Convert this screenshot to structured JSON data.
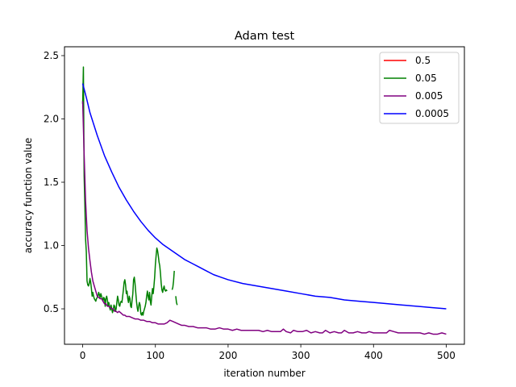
{
  "chart_data": {
    "type": "line",
    "title": "Adam test",
    "xlabel": "iteration number",
    "ylabel": "accuracy function value",
    "xlim": [
      -25,
      525
    ],
    "ylim": [
      0.22,
      2.57
    ],
    "xticks": [
      0,
      100,
      200,
      300,
      400,
      500
    ],
    "yticks": [
      0.5,
      1.0,
      1.5,
      2.0,
      2.5
    ],
    "xtick_labels": [
      "0",
      "100",
      "200",
      "300",
      "400",
      "500"
    ],
    "ytick_labels": [
      "0.5",
      "1.0",
      "1.5",
      "2.0",
      "2.5"
    ],
    "grid": false,
    "legend_position": "top-right",
    "series": [
      {
        "name": "0.5",
        "color": "#ff0000",
        "points": []
      },
      {
        "name": "0.05",
        "color": "#008000",
        "points": [
          [
            0,
            2.12
          ],
          [
            1,
            2.41
          ],
          [
            2,
            1.55
          ],
          [
            3,
            1.32
          ],
          [
            4,
            1.05
          ],
          [
            5,
            0.95
          ],
          [
            6,
            0.72
          ],
          [
            7,
            0.69
          ],
          [
            8,
            0.68
          ],
          [
            9,
            0.7
          ],
          [
            10,
            0.74
          ],
          [
            11,
            0.71
          ],
          [
            12,
            0.66
          ],
          [
            13,
            0.6
          ],
          [
            14,
            0.63
          ],
          [
            15,
            0.6
          ],
          [
            16,
            0.58
          ],
          [
            17,
            0.57
          ],
          [
            18,
            0.56
          ],
          [
            19,
            0.58
          ],
          [
            20,
            0.59
          ],
          [
            21,
            0.6
          ],
          [
            22,
            0.63
          ],
          [
            23,
            0.61
          ],
          [
            24,
            0.59
          ],
          [
            25,
            0.62
          ],
          [
            26,
            0.6
          ],
          [
            27,
            0.58
          ],
          [
            28,
            0.56
          ],
          [
            29,
            0.59
          ],
          [
            30,
            0.58
          ],
          [
            31,
            0.52
          ],
          [
            32,
            0.58
          ],
          [
            33,
            0.6
          ],
          [
            34,
            0.57
          ],
          [
            35,
            0.52
          ],
          [
            36,
            0.55
          ],
          [
            37,
            0.51
          ],
          [
            38,
            0.49
          ],
          [
            39,
            0.53
          ],
          [
            40,
            0.5
          ],
          [
            41,
            0.47
          ],
          [
            42,
            0.49
          ],
          [
            43,
            0.53
          ],
          [
            44,
            0.52
          ],
          [
            45,
            0.48
          ],
          [
            46,
            0.5
          ],
          [
            47,
            0.55
          ],
          [
            48,
            0.6
          ],
          [
            49,
            0.57
          ],
          [
            50,
            0.53
          ],
          [
            51,
            0.52
          ],
          [
            52,
            0.55
          ],
          [
            53,
            0.56
          ],
          [
            54,
            0.55
          ],
          [
            55,
            0.6
          ],
          [
            56,
            0.65
          ],
          [
            57,
            0.71
          ],
          [
            58,
            0.73
          ],
          [
            59,
            0.69
          ],
          [
            60,
            0.62
          ],
          [
            61,
            0.64
          ],
          [
            62,
            0.58
          ],
          [
            63,
            0.55
          ],
          [
            64,
            0.6
          ],
          [
            65,
            0.58
          ],
          [
            66,
            0.52
          ],
          [
            67,
            0.51
          ],
          [
            68,
            0.57
          ],
          [
            69,
            0.62
          ],
          [
            70,
            0.73
          ],
          [
            71,
            0.75
          ],
          [
            72,
            0.7
          ],
          [
            73,
            0.63
          ],
          [
            74,
            0.56
          ],
          [
            75,
            0.51
          ],
          [
            76,
            0.48
          ],
          [
            77,
            0.52
          ],
          [
            78,
            0.55
          ],
          [
            79,
            0.53
          ],
          [
            80,
            0.46
          ],
          [
            81,
            0.45
          ],
          [
            82,
            0.47
          ],
          [
            83,
            0.45
          ],
          [
            84,
            0.48
          ],
          [
            85,
            0.5
          ],
          [
            86,
            0.52
          ],
          [
            87,
            0.55
          ],
          [
            88,
            0.6
          ],
          [
            89,
            0.64
          ],
          [
            90,
            0.6
          ],
          [
            91,
            0.57
          ],
          [
            92,
            0.63
          ],
          [
            93,
            0.56
          ],
          [
            94,
            0.53
          ],
          [
            95,
            0.6
          ],
          [
            96,
            0.66
          ],
          [
            97,
            0.62
          ],
          [
            98,
            0.68
          ],
          [
            99,
            0.75
          ],
          [
            100,
            0.85
          ],
          [
            101,
            0.92
          ],
          [
            102,
            0.98
          ],
          [
            103,
            0.96
          ],
          [
            104,
            0.92
          ],
          [
            105,
            0.87
          ],
          [
            106,
            0.84
          ],
          [
            107,
            0.78
          ],
          [
            108,
            0.7
          ],
          [
            109,
            0.65
          ],
          [
            110,
            0.63
          ],
          [
            111,
            0.66
          ],
          [
            112,
            0.68
          ],
          [
            113,
            0.65
          ],
          [
            114,
            0.64
          ],
          [
            115,
            0.65
          ],
          [
            116,
            0.64
          ],
          [
            null,
            null
          ],
          [
            123,
            0.65
          ],
          [
            124,
            0.67
          ],
          [
            125,
            0.72
          ],
          [
            126,
            0.8
          ],
          [
            null,
            null
          ],
          [
            128,
            0.6
          ],
          [
            129,
            0.55
          ],
          [
            130,
            0.53
          ]
        ]
      },
      {
        "name": "0.005",
        "color": "#800080",
        "points": [
          [
            0,
            2.14
          ],
          [
            2,
            1.72
          ],
          [
            4,
            1.35
          ],
          [
            6,
            1.12
          ],
          [
            8,
            0.98
          ],
          [
            10,
            0.88
          ],
          [
            12,
            0.79
          ],
          [
            14,
            0.72
          ],
          [
            16,
            0.68
          ],
          [
            18,
            0.64
          ],
          [
            20,
            0.6
          ],
          [
            22,
            0.59
          ],
          [
            24,
            0.58
          ],
          [
            26,
            0.58
          ],
          [
            28,
            0.56
          ],
          [
            30,
            0.54
          ],
          [
            32,
            0.54
          ],
          [
            34,
            0.52
          ],
          [
            36,
            0.52
          ],
          [
            38,
            0.51
          ],
          [
            40,
            0.5
          ],
          [
            42,
            0.5
          ],
          [
            44,
            0.48
          ],
          [
            46,
            0.48
          ],
          [
            48,
            0.47
          ],
          [
            50,
            0.48
          ],
          [
            52,
            0.47
          ],
          [
            54,
            0.46
          ],
          [
            56,
            0.45
          ],
          [
            58,
            0.45
          ],
          [
            60,
            0.44
          ],
          [
            64,
            0.44
          ],
          [
            68,
            0.43
          ],
          [
            72,
            0.42
          ],
          [
            76,
            0.42
          ],
          [
            80,
            0.41
          ],
          [
            84,
            0.41
          ],
          [
            88,
            0.4
          ],
          [
            92,
            0.4
          ],
          [
            96,
            0.39
          ],
          [
            100,
            0.39
          ],
          [
            104,
            0.38
          ],
          [
            108,
            0.38
          ],
          [
            112,
            0.38
          ],
          [
            116,
            0.39
          ],
          [
            120,
            0.41
          ],
          [
            124,
            0.4
          ],
          [
            128,
            0.39
          ],
          [
            132,
            0.38
          ],
          [
            136,
            0.37
          ],
          [
            140,
            0.37
          ],
          [
            146,
            0.36
          ],
          [
            152,
            0.36
          ],
          [
            158,
            0.35
          ],
          [
            164,
            0.35
          ],
          [
            170,
            0.35
          ],
          [
            176,
            0.34
          ],
          [
            182,
            0.34
          ],
          [
            188,
            0.35
          ],
          [
            194,
            0.34
          ],
          [
            200,
            0.34
          ],
          [
            206,
            0.33
          ],
          [
            212,
            0.34
          ],
          [
            218,
            0.33
          ],
          [
            224,
            0.33
          ],
          [
            230,
            0.33
          ],
          [
            236,
            0.33
          ],
          [
            242,
            0.33
          ],
          [
            248,
            0.32
          ],
          [
            254,
            0.33
          ],
          [
            260,
            0.32
          ],
          [
            266,
            0.32
          ],
          [
            272,
            0.32
          ],
          [
            276,
            0.34
          ],
          [
            280,
            0.32
          ],
          [
            286,
            0.31
          ],
          [
            290,
            0.33
          ],
          [
            296,
            0.32
          ],
          [
            302,
            0.32
          ],
          [
            308,
            0.33
          ],
          [
            314,
            0.31
          ],
          [
            320,
            0.32
          ],
          [
            326,
            0.31
          ],
          [
            330,
            0.31
          ],
          [
            334,
            0.33
          ],
          [
            340,
            0.31
          ],
          [
            346,
            0.32
          ],
          [
            352,
            0.31
          ],
          [
            356,
            0.31
          ],
          [
            360,
            0.33
          ],
          [
            366,
            0.31
          ],
          [
            372,
            0.31
          ],
          [
            378,
            0.32
          ],
          [
            384,
            0.31
          ],
          [
            390,
            0.31
          ],
          [
            394,
            0.32
          ],
          [
            400,
            0.31
          ],
          [
            406,
            0.31
          ],
          [
            412,
            0.31
          ],
          [
            418,
            0.31
          ],
          [
            422,
            0.33
          ],
          [
            428,
            0.32
          ],
          [
            434,
            0.31
          ],
          [
            440,
            0.31
          ],
          [
            446,
            0.31
          ],
          [
            452,
            0.31
          ],
          [
            458,
            0.31
          ],
          [
            464,
            0.31
          ],
          [
            470,
            0.3
          ],
          [
            476,
            0.31
          ],
          [
            482,
            0.3
          ],
          [
            488,
            0.3
          ],
          [
            494,
            0.31
          ],
          [
            500,
            0.3
          ]
        ]
      },
      {
        "name": "0.0005",
        "color": "#0000ff",
        "points": [
          [
            0,
            2.28
          ],
          [
            5,
            2.17
          ],
          [
            10,
            2.05
          ],
          [
            20,
            1.87
          ],
          [
            30,
            1.71
          ],
          [
            40,
            1.58
          ],
          [
            50,
            1.46
          ],
          [
            60,
            1.36
          ],
          [
            70,
            1.27
          ],
          [
            80,
            1.19
          ],
          [
            90,
            1.12
          ],
          [
            100,
            1.06
          ],
          [
            110,
            1.01
          ],
          [
            120,
            0.97
          ],
          [
            130,
            0.93
          ],
          [
            140,
            0.89
          ],
          [
            150,
            0.86
          ],
          [
            160,
            0.83
          ],
          [
            170,
            0.8
          ],
          [
            180,
            0.77
          ],
          [
            190,
            0.75
          ],
          [
            200,
            0.73
          ],
          [
            220,
            0.7
          ],
          [
            240,
            0.68
          ],
          [
            260,
            0.66
          ],
          [
            280,
            0.64
          ],
          [
            300,
            0.62
          ],
          [
            320,
            0.6
          ],
          [
            340,
            0.59
          ],
          [
            360,
            0.57
          ],
          [
            380,
            0.56
          ],
          [
            400,
            0.55
          ],
          [
            420,
            0.54
          ],
          [
            440,
            0.53
          ],
          [
            460,
            0.52
          ],
          [
            480,
            0.51
          ],
          [
            500,
            0.5
          ]
        ]
      }
    ]
  }
}
